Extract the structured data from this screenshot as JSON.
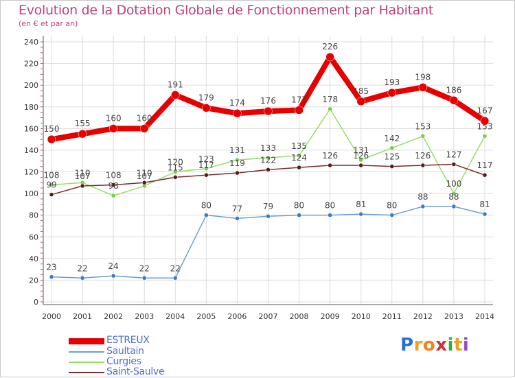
{
  "title": "Evolution de la Dotation Globale de Fonctionnement par Habitant",
  "subtitle": "(en € et par an)",
  "chart_data": {
    "type": "line",
    "x": [
      "2000",
      "2001",
      "2002",
      "2003",
      "2004",
      "2005",
      "2006",
      "2007",
      "2008",
      "2009",
      "2010",
      "2011",
      "2012",
      "2013",
      "2014"
    ],
    "ylim": [
      0,
      240
    ],
    "yticks": [
      0,
      20,
      40,
      60,
      80,
      100,
      120,
      140,
      160,
      180,
      200,
      220,
      240
    ],
    "grid": true,
    "legend_position": "bottom-left",
    "series": [
      {
        "name": "ESTREUX",
        "color": "#e60000",
        "values": [
          150,
          155,
          160,
          160,
          191,
          179,
          174,
          176,
          177,
          226,
          185,
          193,
          198,
          186,
          167
        ]
      },
      {
        "name": "Saultain",
        "color": "#6a9fd4",
        "values": [
          23,
          22,
          24,
          22,
          22,
          80,
          77,
          79,
          80,
          80,
          81,
          80,
          88,
          88,
          81
        ]
      },
      {
        "name": "Curgies",
        "color": "#99dd66",
        "values": [
          108,
          110,
          98,
          107,
          120,
          123,
          131,
          133,
          135,
          178,
          131,
          142,
          153,
          100,
          153
        ]
      },
      {
        "name": "Saint-Saulve",
        "color": "#7a2a2a",
        "values": [
          99,
          107,
          108,
          110,
          115,
          117,
          119,
          122,
          124,
          126,
          126,
          125,
          126,
          127,
          117
        ]
      }
    ]
  },
  "logo": {
    "letters": [
      "P",
      "r",
      "o",
      "x",
      "i",
      "t",
      "i"
    ],
    "colors": [
      "#2a6fd6",
      "#f0a020",
      "#f08020",
      "#d03030",
      "#30b040",
      "#f0a020",
      "#9050c0"
    ]
  }
}
